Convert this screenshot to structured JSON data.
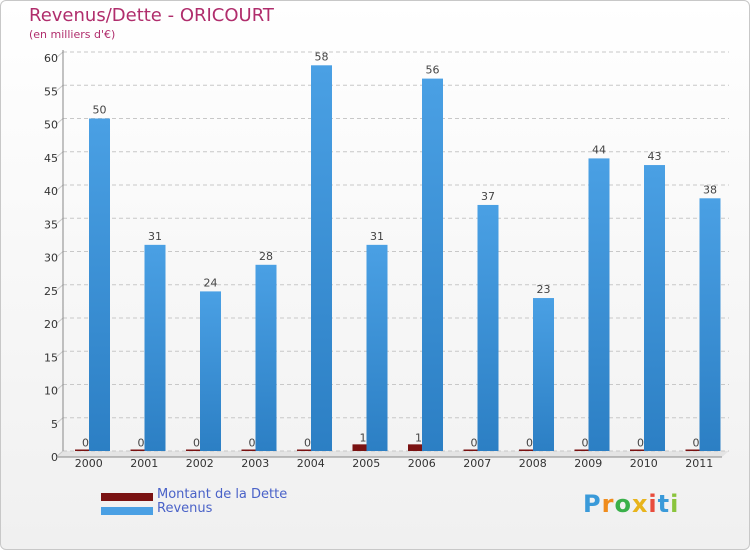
{
  "title": "Revenus/Dette - ORICOURT",
  "subtitle": "(en milliers d'€)",
  "colors": {
    "title": "#b02d6c",
    "dette": "#7a1212",
    "revenus": "#4aa0e4",
    "revenus_dark": "#2c7fc4",
    "grid": "#c8c8c8",
    "legend_text": "#4a62c8"
  },
  "chart_data": {
    "type": "bar",
    "title": "Revenus/Dette - ORICOURT",
    "ylabel": "(en milliers d'€)",
    "xlabel": "",
    "categories": [
      "2000",
      "2001",
      "2002",
      "2003",
      "2004",
      "2005",
      "2006",
      "2007",
      "2008",
      "2009",
      "2010",
      "2011"
    ],
    "series": [
      {
        "name": "Montant de la Dette",
        "values": [
          0,
          0,
          0,
          0,
          0,
          1,
          1,
          0,
          0,
          0,
          0,
          0
        ]
      },
      {
        "name": "Revenus",
        "values": [
          50,
          31,
          24,
          28,
          58,
          31,
          56,
          37,
          23,
          44,
          43,
          38
        ]
      }
    ],
    "ylim": [
      0,
      60
    ],
    "yticks": [
      0,
      5,
      10,
      15,
      20,
      25,
      30,
      35,
      40,
      45,
      50,
      55,
      60
    ],
    "grid": true,
    "legend": "bottom-left"
  },
  "legend": {
    "dette_label": "Montant de la Dette",
    "revenus_label": "Revenus"
  },
  "logo": {
    "letters": [
      "P",
      "r",
      "o",
      "x",
      "i",
      "t",
      "i"
    ],
    "letter_colors": [
      "#3a9ad9",
      "#f08c1c",
      "#3ab04a",
      "#e8b41c",
      "#e84c3c",
      "#3a9ad9",
      "#8ac43c"
    ]
  }
}
